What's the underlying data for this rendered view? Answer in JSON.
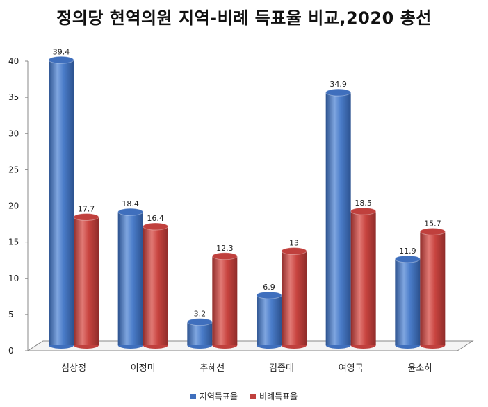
{
  "chart_data": {
    "type": "bar",
    "title": "정의당 현역의원 지역-비례 득표율 비교,2020 총선",
    "categories": [
      "심상정",
      "이정미",
      "추혜선",
      "김종대",
      "여영국",
      "윤소하"
    ],
    "series": [
      {
        "name": "지역득표율",
        "color": "#3f6fbd",
        "values": [
          39.4,
          18.4,
          3.2,
          6.9,
          34.9,
          11.9
        ],
        "labels": [
          "39.4",
          "18.4",
          "3.2",
          "6.9",
          "34.9",
          "11.9"
        ]
      },
      {
        "name": "비례득표율",
        "color": "#c0403d",
        "values": [
          17.7,
          16.4,
          12.3,
          13,
          18.5,
          15.7
        ],
        "labels": [
          "17.7",
          "16.4",
          "12.3",
          "13",
          "18.5",
          "15.7"
        ]
      }
    ],
    "ylim": [
      0,
      40
    ],
    "yticks": [
      0,
      5,
      10,
      15,
      20,
      25,
      30,
      35,
      40
    ],
    "grid": false,
    "legend_position": "bottom"
  }
}
